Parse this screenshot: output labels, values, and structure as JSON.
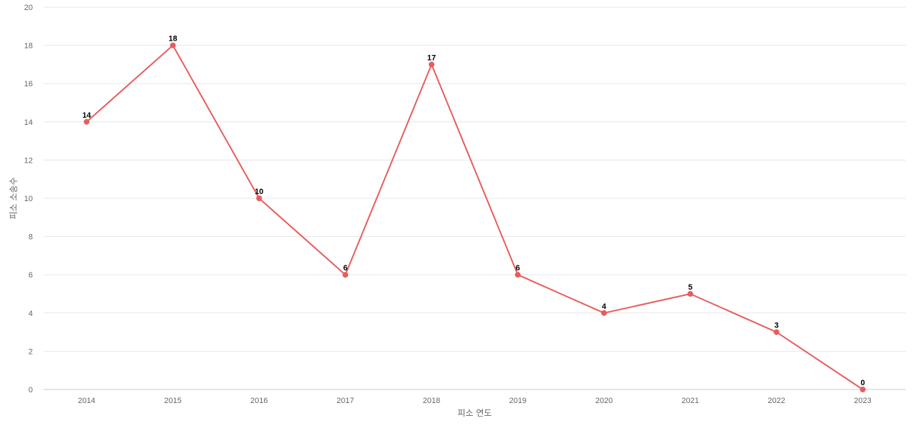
{
  "chart_data": {
    "type": "line",
    "title": "",
    "xlabel": "피소 연도",
    "ylabel": "피소 소송수",
    "categories": [
      "2014",
      "2015",
      "2016",
      "2017",
      "2018",
      "2019",
      "2020",
      "2021",
      "2022",
      "2023"
    ],
    "series": [
      {
        "values": [
          14,
          18,
          10,
          6,
          17,
          6,
          4,
          5,
          3,
          0
        ],
        "color": "#e85c5c"
      }
    ],
    "ylim": [
      0,
      20
    ],
    "yticks": [
      0,
      2,
      4,
      6,
      8,
      10,
      12,
      14,
      16,
      18,
      20
    ],
    "grid": true,
    "data_labels": true,
    "legend": "none"
  }
}
